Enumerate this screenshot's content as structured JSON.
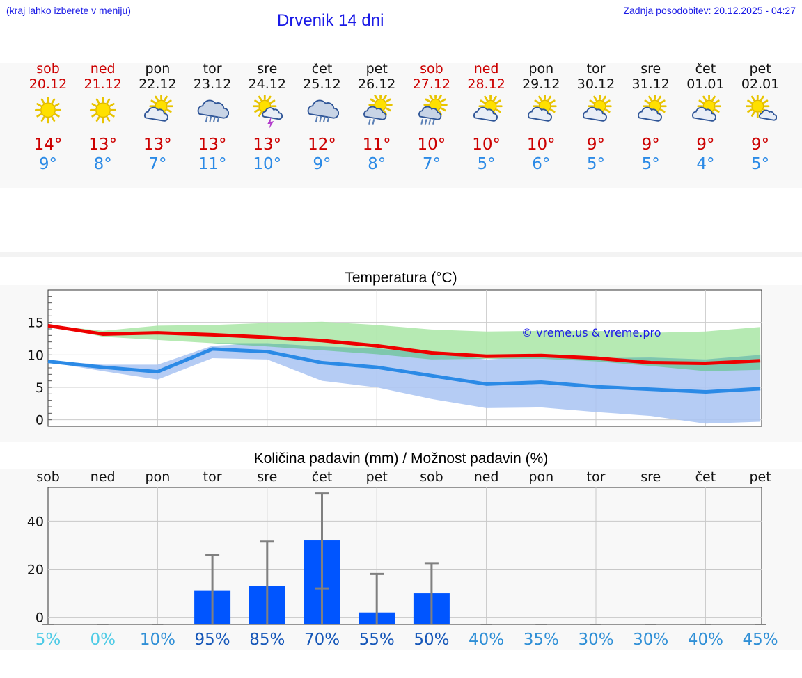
{
  "header": {
    "menu_hint": "(kraj lahko izberete v meniju)",
    "title": "Drvenik 14 dni",
    "updated": "Zadnja posodobitev: 20.12.2025 - 04:27"
  },
  "days": [
    {
      "name": "sob",
      "date": "20.12",
      "weekend": true,
      "icon": "sun-icon",
      "tmax": "14°",
      "tmin": "9°"
    },
    {
      "name": "ned",
      "date": "21.12",
      "weekend": true,
      "icon": "sun-icon",
      "tmax": "13°",
      "tmin": "8°"
    },
    {
      "name": "pon",
      "date": "22.12",
      "weekend": false,
      "icon": "partly-cloudy-icon",
      "tmax": "13°",
      "tmin": "7°"
    },
    {
      "name": "tor",
      "date": "23.12",
      "weekend": false,
      "icon": "cloud-rain-heavy-icon",
      "tmax": "13°",
      "tmin": "11°"
    },
    {
      "name": "sre",
      "date": "24.12",
      "weekend": false,
      "icon": "sun-thunderstorm-icon",
      "tmax": "13°",
      "tmin": "10°"
    },
    {
      "name": "čet",
      "date": "25.12",
      "weekend": false,
      "icon": "cloud-rain-heavy-icon",
      "tmax": "12°",
      "tmin": "9°"
    },
    {
      "name": "pet",
      "date": "26.12",
      "weekend": false,
      "icon": "sun-cloud-rain-icon",
      "tmax": "11°",
      "tmin": "8°"
    },
    {
      "name": "sob",
      "date": "27.12",
      "weekend": true,
      "icon": "sun-cloud-rain-heavy-icon",
      "tmax": "10°",
      "tmin": "7°"
    },
    {
      "name": "ned",
      "date": "28.12",
      "weekend": true,
      "icon": "partly-cloudy-icon",
      "tmax": "10°",
      "tmin": "5°"
    },
    {
      "name": "pon",
      "date": "29.12",
      "weekend": false,
      "icon": "partly-cloudy-icon",
      "tmax": "10°",
      "tmin": "6°"
    },
    {
      "name": "tor",
      "date": "30.12",
      "weekend": false,
      "icon": "partly-cloudy-icon",
      "tmax": "9°",
      "tmin": "5°"
    },
    {
      "name": "sre",
      "date": "31.12",
      "weekend": false,
      "icon": "partly-cloudy-icon",
      "tmax": "9°",
      "tmin": "5°"
    },
    {
      "name": "čet",
      "date": "01.01",
      "weekend": false,
      "icon": "partly-cloudy-icon",
      "tmax": "9°",
      "tmin": "4°"
    },
    {
      "name": "pet",
      "date": "02.01",
      "weekend": false,
      "icon": "sun-small-cloud-icon",
      "tmax": "9°",
      "tmin": "5°"
    }
  ],
  "colors": {
    "max_line": "#ee0000",
    "min_line": "#2b8ae6",
    "max_band": "#a9e6a6",
    "min_band": "#a8c3f2",
    "overlap_band": "#79c7a6",
    "precip_bar": "#0055ff",
    "error_bar": "#808080",
    "watermark": "#1a1ae6"
  },
  "chart_data": [
    {
      "type": "line",
      "title": "Temperatura (°C)",
      "watermark": "© vreme.us & vreme.pro",
      "x": [
        0,
        1,
        2,
        3,
        4,
        5,
        6,
        7,
        8,
        9,
        10,
        11,
        12,
        13
      ],
      "ylim": [
        -1,
        20
      ],
      "yticks": [
        0,
        5,
        10,
        15
      ],
      "grid": true,
      "series": [
        {
          "name": "max",
          "values": [
            14.5,
            13.2,
            13.4,
            13.1,
            12.7,
            12.2,
            11.4,
            10.3,
            9.8,
            9.9,
            9.5,
            8.8,
            8.7,
            9.1
          ],
          "band_low": [
            14.5,
            12.8,
            12.3,
            11.8,
            11.3,
            10.7,
            10.1,
            9.3,
            9.4,
            9.4,
            9.0,
            8.3,
            7.5,
            7.7
          ],
          "band_high": [
            14.6,
            13.7,
            14.5,
            14.6,
            14.9,
            15.1,
            14.6,
            13.9,
            13.6,
            13.7,
            13.7,
            13.4,
            13.6,
            14.3
          ]
        },
        {
          "name": "min",
          "values": [
            9.0,
            8.1,
            7.4,
            10.9,
            10.5,
            8.8,
            8.1,
            6.8,
            5.5,
            5.8,
            5.1,
            4.7,
            4.3,
            4.8
          ],
          "band_low": [
            8.9,
            7.5,
            6.2,
            9.5,
            9.3,
            6.0,
            5.0,
            3.2,
            1.8,
            1.9,
            1.2,
            0.6,
            -0.6,
            -0.3
          ],
          "band_high": [
            9.1,
            8.5,
            8.5,
            11.4,
            11.8,
            11.3,
            11.0,
            10.2,
            9.3,
            9.7,
            9.5,
            9.6,
            9.3,
            10.0
          ]
        }
      ]
    },
    {
      "type": "bar",
      "title": "Količina padavin (mm) / Možnost padavin (%)",
      "categories": [
        "sob",
        "ned",
        "pon",
        "tor",
        "sre",
        "čet",
        "pet",
        "sob",
        "ned",
        "pon",
        "tor",
        "sre",
        "čet",
        "pet"
      ],
      "values": [
        0,
        0,
        0,
        11,
        13,
        32,
        2,
        10,
        0,
        0,
        0,
        0,
        0,
        0
      ],
      "err_low": [
        0,
        0,
        0,
        0,
        0,
        12,
        0,
        0,
        0,
        0,
        0,
        0,
        0,
        0
      ],
      "err_high": [
        0,
        0,
        0,
        26,
        31.5,
        51.5,
        18,
        22.5,
        0,
        0,
        0,
        0,
        0,
        0
      ],
      "probability": [
        "5%",
        "0%",
        "10%",
        "95%",
        "85%",
        "70%",
        "55%",
        "50%",
        "40%",
        "35%",
        "30%",
        "30%",
        "40%",
        "45%"
      ],
      "probability_values": [
        5,
        0,
        10,
        95,
        85,
        70,
        55,
        50,
        40,
        35,
        30,
        30,
        40,
        45
      ],
      "ylim": [
        -3,
        54
      ],
      "yticks": [
        0,
        20,
        40
      ],
      "grid": true
    }
  ]
}
